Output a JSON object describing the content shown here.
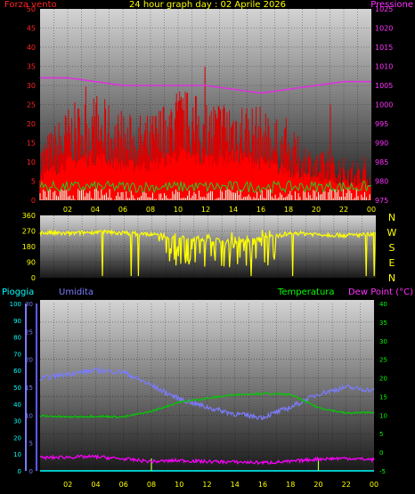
{
  "title": "24 hour graph day : 02 Aprile 2026",
  "colors": {
    "wind": "#ff0000",
    "gust": "#dd0000",
    "pressure": "#dd33dd",
    "direction": "#ffff00",
    "rain": "#00ffff",
    "humidity": "#7b7bff",
    "temperature": "#00cc00",
    "dewpoint": "#ff00ff",
    "axis_red": "#ff2222",
    "axis_magenta": "#ff33ff",
    "axis_yellow": "#ffff00",
    "axis_cyan": "#00ffff",
    "axis_green": "#00ff00",
    "axis_blue": "#5a5aff",
    "tick": "#ffff00"
  },
  "chart_data": [
    {
      "type": "line",
      "title": "24 hour graph day : 02 Aprile 2026",
      "y_left_label": "Forza vento",
      "y_right_label": "Pressione",
      "ylim_left": [
        0,
        50
      ],
      "ylim_right": [
        975,
        1025
      ],
      "left_ticks": [
        "0",
        "5",
        "10",
        "15",
        "20",
        "25",
        "30",
        "35",
        "40",
        "45",
        "50"
      ],
      "right_ticks": [
        "975",
        "980",
        "985",
        "990",
        "995",
        "1000",
        "1005",
        "1010",
        "1015",
        "1020",
        "1025"
      ],
      "x_ticks": [
        "02",
        "04",
        "06",
        "08",
        "10",
        "12",
        "14",
        "16",
        "18",
        "20",
        "22",
        "00"
      ],
      "series": [
        {
          "name": "Forza vento",
          "axis": "left",
          "x": [
            0,
            2,
            4,
            6,
            8,
            10,
            12,
            14,
            16,
            18,
            20,
            22,
            24
          ],
          "y": [
            8,
            13,
            15,
            12,
            12,
            16,
            14,
            15,
            13,
            10,
            7,
            6,
            5
          ]
        },
        {
          "name": "Pressione",
          "axis": "right",
          "x": [
            0,
            2,
            4,
            6,
            8,
            10,
            12,
            14,
            16,
            18,
            20,
            22,
            24
          ],
          "y": [
            1007,
            1007,
            1006,
            1005,
            1005,
            1005,
            1005,
            1004,
            1003,
            1004,
            1005,
            1006,
            1006
          ]
        }
      ]
    },
    {
      "type": "line",
      "left_ticks": [
        "0",
        "90",
        "180",
        "270",
        "360"
      ],
      "ylim": [
        0,
        360
      ],
      "right_labels": [
        "N",
        "W",
        "S",
        "E",
        "N"
      ],
      "x_ticks": [
        "02",
        "04",
        "06",
        "08",
        "10",
        "12",
        "14",
        "16",
        "18",
        "20",
        "22",
        "00"
      ],
      "series": [
        {
          "name": "",
          "x": [
            0,
            2,
            4,
            6,
            8,
            10,
            12,
            14,
            16,
            18,
            20,
            22,
            24
          ],
          "y": [
            260,
            255,
            265,
            258,
            250,
            230,
            220,
            210,
            225,
            260,
            250,
            245,
            250
          ]
        }
      ]
    },
    {
      "type": "line",
      "labels": {
        "rain": "Pioggia",
        "humidity": "Umidita",
        "temperature": "Temperatura",
        "dewpoint": "Dew Point (°C)"
      },
      "rain_ticks": [
        "0",
        "10",
        "20",
        "30",
        "40",
        "50",
        "60",
        "70",
        "80",
        "90",
        "100"
      ],
      "humidity_ticks": [
        "0",
        "5",
        "10",
        "15",
        "20",
        "25",
        "30"
      ],
      "temp_ticks": [
        "-5",
        "0",
        "5",
        "10",
        "15",
        "20",
        "25",
        "30",
        "35",
        "40"
      ],
      "ylim_rain": [
        0,
        100
      ],
      "ylim_temp": [
        -5,
        40
      ],
      "x_ticks": [
        "02",
        "04",
        "06",
        "08",
        "10",
        "12",
        "14",
        "16",
        "18",
        "20",
        "22",
        "00"
      ],
      "series": [
        {
          "name": "Umidita",
          "axis": "rain",
          "x": [
            0,
            2,
            4,
            6,
            8,
            10,
            12,
            14,
            16,
            18,
            20,
            22,
            24
          ],
          "y": [
            55,
            58,
            60,
            59,
            51,
            43,
            38,
            34,
            32,
            38,
            46,
            50,
            48
          ]
        },
        {
          "name": "Temperatura",
          "axis": "temp",
          "x": [
            0,
            2,
            4,
            6,
            8,
            10,
            12,
            14,
            16,
            18,
            20,
            22,
            24
          ],
          "y": [
            9.8,
            9.5,
            9.7,
            9.5,
            11,
            13.5,
            14.5,
            15.5,
            15.8,
            15.5,
            12,
            10.5,
            10.8
          ]
        },
        {
          "name": "Dew Point (°C)",
          "axis": "temp",
          "x": [
            0,
            2,
            4,
            6,
            8,
            10,
            12,
            14,
            16,
            18,
            20,
            22,
            24
          ],
          "y": [
            -1.5,
            -1.3,
            -1.2,
            -1.8,
            -2.5,
            -2.2,
            -2.5,
            -2.6,
            -2.8,
            -2.5,
            -1.8,
            -1.6,
            -2
          ]
        },
        {
          "name": "Pioggia",
          "axis": "rain",
          "x": [
            0,
            24
          ],
          "y": [
            0,
            0
          ]
        }
      ]
    }
  ]
}
